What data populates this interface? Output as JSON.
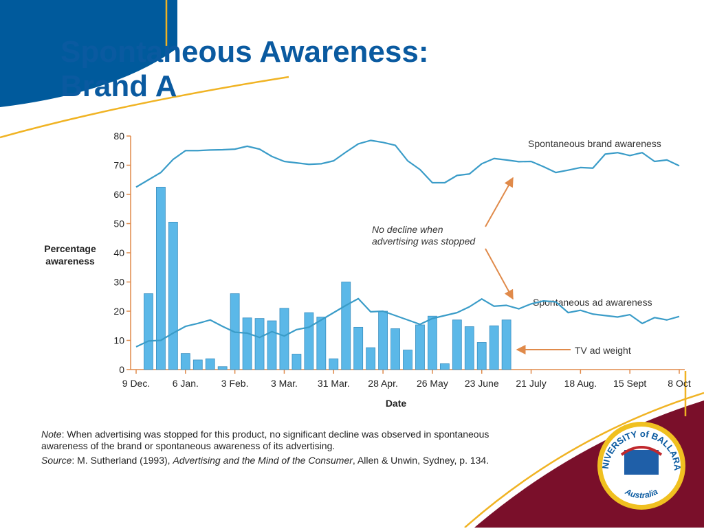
{
  "title": "Spontaneous Awareness: Brand A",
  "chart_data": {
    "type": "combo",
    "ylabel": [
      "Percentage",
      "awareness"
    ],
    "xlabel": "Date",
    "categories": [
      "9 Dec.",
      null,
      null,
      null,
      "6 Jan.",
      null,
      null,
      null,
      "3 Feb.",
      null,
      null,
      null,
      "3 Mar.",
      null,
      null,
      null,
      "31 Mar.",
      null,
      null,
      null,
      "28 Apr.",
      null,
      null,
      null,
      "26 May",
      null,
      null,
      null,
      "23 June",
      null,
      null,
      null,
      "21 July",
      null,
      null,
      null,
      "18 Aug.",
      null,
      null,
      null,
      "15 Sept",
      null,
      null,
      null,
      "8 Oct"
    ],
    "ylim": [
      0,
      80
    ],
    "yticks": [
      0,
      10,
      20,
      30,
      40,
      50,
      60,
      70,
      80
    ],
    "series": [
      {
        "name": "Spontaneous brand awareness",
        "kind": "line",
        "color": "#3a9cc8",
        "values": [
          62.5,
          65,
          67.5,
          72,
          75,
          75,
          75.2,
          75.3,
          75.5,
          76.5,
          75.5,
          73,
          71.3,
          70.8,
          70.3,
          70.5,
          71.5,
          74.5,
          77.3,
          78.5,
          77.8,
          76.8,
          71.5,
          68.5,
          64,
          64,
          66.5,
          67,
          70.5,
          72.3,
          71.8,
          71.2,
          71.3,
          69.5,
          67.5,
          68.3,
          69.2,
          69,
          73.8,
          74.3,
          73.3,
          74.3,
          71.3,
          71.8,
          69.8
        ]
      },
      {
        "name": "Spontaneous ad awareness",
        "kind": "line",
        "color": "#3a9cc8",
        "values": [
          7.8,
          9.8,
          10,
          12.5,
          14.8,
          15.8,
          17,
          14.8,
          12.8,
          12.5,
          11,
          13,
          11.5,
          13.7,
          14.5,
          17,
          19.5,
          22,
          24.3,
          19.8,
          20,
          18.5,
          17,
          15.5,
          17.5,
          18.5,
          19.5,
          21.5,
          24.2,
          21.7,
          22,
          20.8,
          22.5,
          23.5,
          23.2,
          19.5,
          20.3,
          19,
          18.5,
          18,
          18.8,
          15.8,
          17.8,
          17,
          18.2
        ]
      },
      {
        "name": "TV ad weight",
        "kind": "bar",
        "color": "#5bb8e8",
        "values": [
          null,
          26,
          62.5,
          50.5,
          5.5,
          3.3,
          3.7,
          1,
          26,
          17.7,
          17.5,
          16.7,
          21,
          5.3,
          19.5,
          18,
          3.7,
          30,
          14.5,
          7.5,
          20,
          14,
          6.7,
          15.3,
          18.3,
          2,
          17,
          14.7,
          9.3,
          15,
          17,
          null,
          null,
          null,
          null,
          null,
          null,
          null,
          null,
          null,
          null,
          null,
          null,
          null,
          null
        ]
      }
    ],
    "annotations": [
      "No decline when",
      "advertising was stopped"
    ]
  },
  "note": [
    "Note",
    ": When advertising was stopped for this product, no significant decline was observed in spontaneous",
    "awareness of the brand or spontaneous awareness of its advertising."
  ],
  "source": [
    "Source",
    ": M. Sutherland (1993), ",
    "Advertising and the Mind of the Consumer",
    ", Allen & Unwin, Sydney, p. 134."
  ],
  "logo": {
    "top": "UNIVERSITY of BALLARAT",
    "bottom": "Australia"
  }
}
